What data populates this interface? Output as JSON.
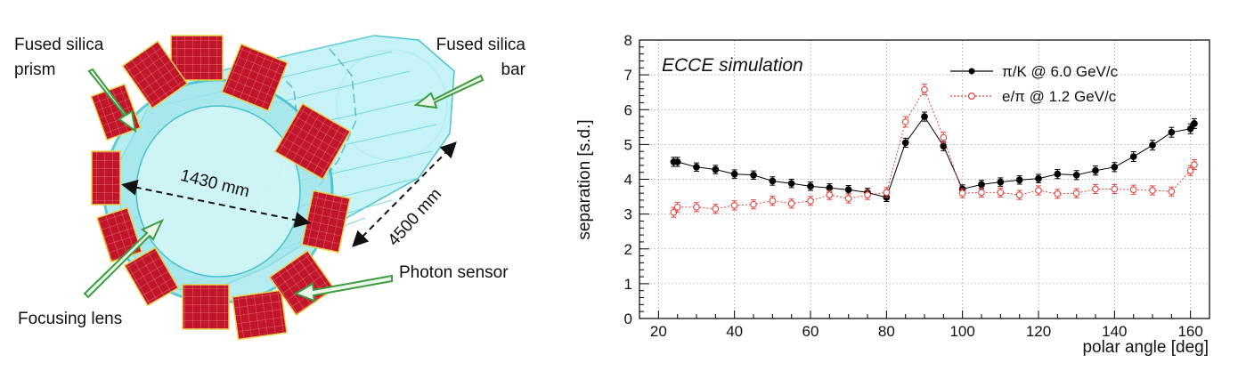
{
  "figure": {
    "labels": {
      "prism": [
        "Fused silica",
        "prism"
      ],
      "bar": [
        "Fused silica",
        "bar"
      ],
      "diameter": "1430 mm",
      "length": "4500 mm",
      "lens": "Focusing lens",
      "sensor": "Photon sensor"
    },
    "colors": {
      "sensor": "#c0152a",
      "bar": "#7fe3ea",
      "bar_edge": "#2bb9c6",
      "arrow": "#3e9a3e"
    }
  },
  "chart_data": {
    "type": "scatter",
    "annotation": "ECCE simulation",
    "xlabel": "polar angle [deg]",
    "ylabel": "separation [s.d.]",
    "xlim": [
      15,
      165
    ],
    "ylim": [
      0,
      8
    ],
    "xticks": [
      20,
      40,
      60,
      80,
      100,
      120,
      140,
      160
    ],
    "yticks": [
      0,
      1,
      2,
      3,
      4,
      5,
      6,
      7,
      8
    ],
    "grid": true,
    "legend_position": "top-right",
    "series": [
      {
        "name": "π/K @ 6.0 GeV/c",
        "color": "#000000",
        "marker": "filled-circle",
        "line": "solid",
        "x": [
          24,
          25,
          30,
          35,
          40,
          45,
          50,
          55,
          60,
          65,
          70,
          75,
          80,
          85,
          90,
          95,
          100,
          105,
          110,
          115,
          120,
          125,
          130,
          135,
          140,
          145,
          150,
          155,
          160,
          161
        ],
        "y": [
          4.5,
          4.5,
          4.35,
          4.28,
          4.15,
          4.12,
          3.95,
          3.88,
          3.8,
          3.75,
          3.7,
          3.62,
          3.48,
          5.05,
          5.8,
          4.95,
          3.72,
          3.85,
          3.92,
          3.98,
          4.02,
          4.15,
          4.12,
          4.25,
          4.35,
          4.65,
          4.98,
          5.35,
          5.45,
          5.6
        ],
        "err": [
          0.13,
          0.13,
          0.12,
          0.12,
          0.12,
          0.12,
          0.12,
          0.12,
          0.12,
          0.12,
          0.12,
          0.12,
          0.12,
          0.13,
          0.13,
          0.13,
          0.12,
          0.12,
          0.12,
          0.12,
          0.12,
          0.13,
          0.13,
          0.13,
          0.13,
          0.14,
          0.14,
          0.14,
          0.14,
          0.14
        ]
      },
      {
        "name": "e/π @ 1.2 GeV/c",
        "color": "#e0443c",
        "marker": "open-circle",
        "line": "dotted",
        "x": [
          24,
          25,
          30,
          35,
          40,
          45,
          50,
          55,
          60,
          65,
          70,
          75,
          80,
          85,
          90,
          95,
          100,
          105,
          110,
          115,
          120,
          125,
          130,
          135,
          140,
          145,
          150,
          155,
          160,
          161
        ],
        "y": [
          3.05,
          3.2,
          3.2,
          3.15,
          3.25,
          3.28,
          3.38,
          3.3,
          3.38,
          3.55,
          3.45,
          3.55,
          3.62,
          5.65,
          6.58,
          5.2,
          3.6,
          3.62,
          3.62,
          3.55,
          3.68,
          3.58,
          3.6,
          3.72,
          3.72,
          3.7,
          3.68,
          3.65,
          4.25,
          4.42
        ],
        "err": [
          0.14,
          0.14,
          0.13,
          0.13,
          0.13,
          0.13,
          0.13,
          0.13,
          0.13,
          0.13,
          0.13,
          0.13,
          0.14,
          0.15,
          0.15,
          0.15,
          0.13,
          0.13,
          0.13,
          0.13,
          0.13,
          0.13,
          0.13,
          0.13,
          0.13,
          0.13,
          0.13,
          0.13,
          0.14,
          0.14
        ]
      }
    ]
  }
}
